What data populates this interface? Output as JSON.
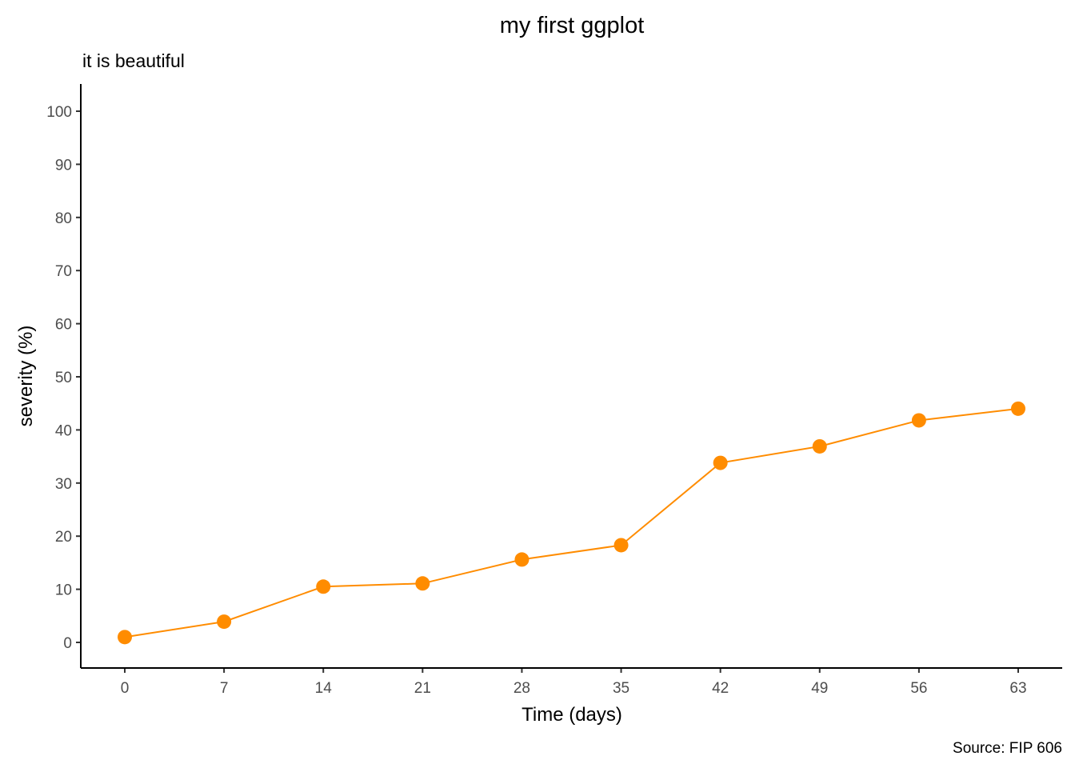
{
  "chart_data": {
    "type": "line",
    "title": "my first ggplot",
    "subtitle": "it is beautiful",
    "caption": "Source: FIP 606",
    "xlabel": "Time (days)",
    "ylabel": "severity (%)",
    "x_ticks": [
      "0",
      "7",
      "14",
      "21",
      "28",
      "35",
      "42",
      "49",
      "56",
      "63"
    ],
    "y_ticks": [
      "0",
      "10",
      "20",
      "30",
      "40",
      "50",
      "60",
      "70",
      "80",
      "90",
      "100"
    ],
    "xlim": [
      -3.5,
      66.5
    ],
    "ylim": [
      -5,
      105
    ],
    "grid": false,
    "legend": "none",
    "series": [
      {
        "color": "#ff8c00",
        "points": [
          {
            "x": 0,
            "y": 1
          },
          {
            "x": 7,
            "y": 3.9
          },
          {
            "x": 14,
            "y": 10.5
          },
          {
            "x": 21,
            "y": 11.1
          },
          {
            "x": 28,
            "y": 15.6
          },
          {
            "x": 35,
            "y": 18.3
          },
          {
            "x": 42,
            "y": 33.8
          },
          {
            "x": 49,
            "y": 36.9
          },
          {
            "x": 56,
            "y": 41.8
          },
          {
            "x": 63,
            "y": 44
          }
        ]
      }
    ]
  }
}
